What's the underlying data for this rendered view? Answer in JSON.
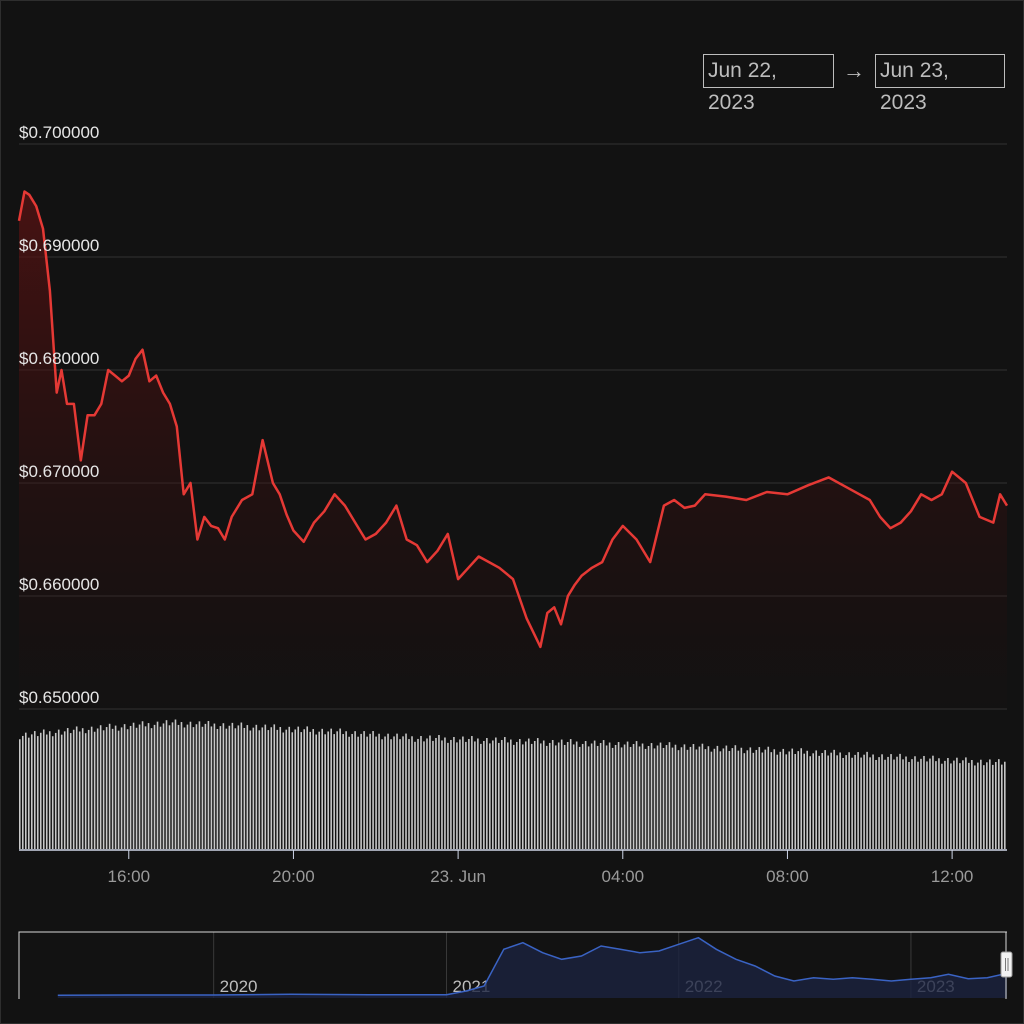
{
  "range_selector": {
    "from": "Jun 22, 2023",
    "arrow": "→",
    "to": "Jun 23, 2023"
  },
  "colors": {
    "background": "#121212",
    "price_line": "#e53935",
    "volume_bar": "#c7c7c7",
    "navigator_line": "#3a63c4",
    "grid": "#333333"
  },
  "chart_data": {
    "type": "line",
    "title": "",
    "xlabel": "",
    "ylabel": "",
    "x_ticks": [
      "16:00",
      "20:00",
      "23. Jun",
      "04:00",
      "08:00",
      "12:00"
    ],
    "y_ticks": [
      "$0.700000",
      "$0.690000",
      "$0.680000",
      "$0.670000",
      "$0.660000",
      "$0.650000"
    ],
    "ylim": [
      0.65,
      0.7
    ],
    "xlim": [
      "2023-06-22 13:20",
      "2023-06-23 13:20"
    ],
    "grid": true,
    "series": [
      {
        "type": "line",
        "x": [
          "2023-06-22 13:20",
          "2023-06-22 13:28",
          "2023-06-22 13:35",
          "2023-06-22 13:45",
          "2023-06-22 13:55",
          "2023-06-22 14:05",
          "2023-06-22 14:15",
          "2023-06-22 14:22",
          "2023-06-22 14:30",
          "2023-06-22 14:40",
          "2023-06-22 14:50",
          "2023-06-22 15:00",
          "2023-06-22 15:10",
          "2023-06-22 15:20",
          "2023-06-22 15:30",
          "2023-06-22 15:40",
          "2023-06-22 15:50",
          "2023-06-22 16:00",
          "2023-06-22 16:10",
          "2023-06-22 16:20",
          "2023-06-22 16:30",
          "2023-06-22 16:40",
          "2023-06-22 16:50",
          "2023-06-22 17:00",
          "2023-06-22 17:10",
          "2023-06-22 17:20",
          "2023-06-22 17:30",
          "2023-06-22 17:40",
          "2023-06-22 17:50",
          "2023-06-22 18:00",
          "2023-06-22 18:10",
          "2023-06-22 18:20",
          "2023-06-22 18:30",
          "2023-06-22 18:45",
          "2023-06-22 19:00",
          "2023-06-22 19:15",
          "2023-06-22 19:30",
          "2023-06-22 19:40",
          "2023-06-22 19:50",
          "2023-06-22 20:00",
          "2023-06-22 20:15",
          "2023-06-22 20:30",
          "2023-06-22 20:45",
          "2023-06-22 21:00",
          "2023-06-22 21:15",
          "2023-06-22 21:30",
          "2023-06-22 21:45",
          "2023-06-22 22:00",
          "2023-06-22 22:15",
          "2023-06-22 22:30",
          "2023-06-22 22:45",
          "2023-06-22 23:00",
          "2023-06-22 23:15",
          "2023-06-22 23:30",
          "2023-06-22 23:45",
          "2023-06-23 00:00",
          "2023-06-23 00:15",
          "2023-06-23 00:30",
          "2023-06-23 00:45",
          "2023-06-23 01:00",
          "2023-06-23 01:20",
          "2023-06-23 01:40",
          "2023-06-23 02:00",
          "2023-06-23 02:10",
          "2023-06-23 02:20",
          "2023-06-23 02:30",
          "2023-06-23 02:40",
          "2023-06-23 02:50",
          "2023-06-23 03:00",
          "2023-06-23 03:15",
          "2023-06-23 03:30",
          "2023-06-23 03:45",
          "2023-06-23 04:00",
          "2023-06-23 04:20",
          "2023-06-23 04:40",
          "2023-06-23 05:00",
          "2023-06-23 05:15",
          "2023-06-23 05:30",
          "2023-06-23 05:45",
          "2023-06-23 06:00",
          "2023-06-23 06:30",
          "2023-06-23 07:00",
          "2023-06-23 07:30",
          "2023-06-23 08:00",
          "2023-06-23 08:30",
          "2023-06-23 09:00",
          "2023-06-23 09:30",
          "2023-06-23 10:00",
          "2023-06-23 10:15",
          "2023-06-23 10:30",
          "2023-06-23 10:45",
          "2023-06-23 11:00",
          "2023-06-23 11:15",
          "2023-06-23 11:30",
          "2023-06-23 11:45",
          "2023-06-23 12:00",
          "2023-06-23 12:20",
          "2023-06-23 12:40",
          "2023-06-23 13:00",
          "2023-06-23 13:10",
          "2023-06-23 13:20"
        ],
        "values": [
          0.6932,
          0.6958,
          0.6955,
          0.6945,
          0.6925,
          0.687,
          0.678,
          0.68,
          0.677,
          0.677,
          0.672,
          0.676,
          0.676,
          0.677,
          0.68,
          0.6795,
          0.679,
          0.6795,
          0.681,
          0.6818,
          0.679,
          0.6795,
          0.678,
          0.677,
          0.675,
          0.669,
          0.67,
          0.665,
          0.667,
          0.6662,
          0.666,
          0.665,
          0.667,
          0.6685,
          0.669,
          0.6738,
          0.67,
          0.669,
          0.6672,
          0.6658,
          0.6648,
          0.6665,
          0.6675,
          0.669,
          0.668,
          0.6665,
          0.665,
          0.6655,
          0.6665,
          0.668,
          0.665,
          0.6645,
          0.663,
          0.664,
          0.6655,
          0.6615,
          0.6625,
          0.6635,
          0.663,
          0.6625,
          0.6615,
          0.658,
          0.6555,
          0.6585,
          0.659,
          0.6575,
          0.66,
          0.661,
          0.6618,
          0.6625,
          0.663,
          0.665,
          0.6662,
          0.665,
          0.663,
          0.668,
          0.6685,
          0.6678,
          0.668,
          0.669,
          0.6688,
          0.6685,
          0.6692,
          0.669,
          0.6698,
          0.6705,
          0.6695,
          0.6685,
          0.667,
          0.666,
          0.6665,
          0.6675,
          0.669,
          0.6685,
          0.669,
          0.671,
          0.67,
          0.667,
          0.6665,
          0.669,
          0.668
        ]
      },
      {
        "type": "bar",
        "x": [
          "2023-06-22 13:20",
          "2023-06-22 15:00",
          "2023-06-22 17:00",
          "2023-06-22 19:00",
          "2023-06-22 21:00",
          "2023-06-22 23:00",
          "2023-06-23 01:00",
          "2023-06-23 03:00",
          "2023-06-23 05:00",
          "2023-06-23 07:00",
          "2023-06-23 09:00",
          "2023-06-23 11:00",
          "2023-06-23 13:20"
        ],
        "values": [
          0.9,
          0.95,
          1.0,
          0.97,
          0.93,
          0.88,
          0.86,
          0.84,
          0.82,
          0.79,
          0.76,
          0.72,
          0.68
        ]
      }
    ],
    "navigator": {
      "x_ticks": [
        "2020",
        "2021",
        "2022",
        "2023"
      ],
      "x": [
        "2019-05",
        "2019-09",
        "2020-01",
        "2020-05",
        "2020-09",
        "2021-01",
        "2021-02",
        "2021-03",
        "2021-04",
        "2021-05",
        "2021-06",
        "2021-07",
        "2021-08",
        "2021-09",
        "2021-10",
        "2021-11",
        "2021-12",
        "2022-01",
        "2022-02",
        "2022-03",
        "2022-04",
        "2022-05",
        "2022-06",
        "2022-07",
        "2022-08",
        "2022-09",
        "2022-10",
        "2022-11",
        "2022-12",
        "2023-01",
        "2023-02",
        "2023-03",
        "2023-04",
        "2023-05",
        "2023-06"
      ],
      "values": [
        0.02,
        0.03,
        0.03,
        0.05,
        0.04,
        0.04,
        0.15,
        0.3,
        1.4,
        1.6,
        1.3,
        1.1,
        1.2,
        1.5,
        1.4,
        1.3,
        1.35,
        1.55,
        1.75,
        1.4,
        1.1,
        0.9,
        0.6,
        0.45,
        0.55,
        0.5,
        0.55,
        0.5,
        0.45,
        0.5,
        0.55,
        0.65,
        0.52,
        0.55,
        0.68
      ]
    }
  }
}
